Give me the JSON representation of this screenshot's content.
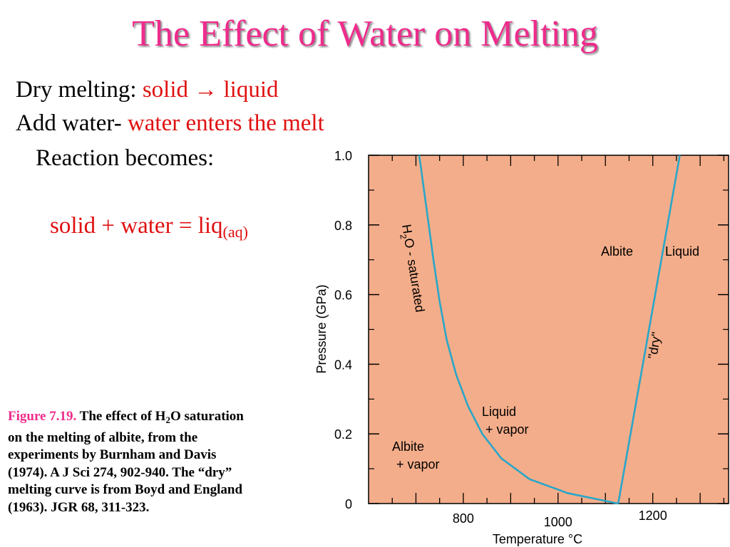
{
  "slide": {
    "title": "The Effect of Water on Melting",
    "line1_prefix": "Dry melting: ",
    "line1_red": "solid → liquid",
    "line2_prefix": "Add water- ",
    "line2_red": "water enters the melt",
    "line3": "Reaction becomes:",
    "equation_main": "solid + water = liq",
    "equation_sub": "(aq)"
  },
  "caption": {
    "fig_label": "Figure 7.19.",
    "text_a": " The effect of H",
    "text_sub": "2",
    "text_b": "O saturation on the melting of albite, from the experiments by Burnham and Davis (1974). A J Sci 274, 902-940. The “dry” melting curve is from Boyd and England (1963). JGR 68, 311-323."
  },
  "colors": {
    "title": "#ee2c8c",
    "red_text": "#e01010",
    "plot_bg": "#f4ad8a",
    "curve": "#2aa6c8"
  },
  "chart_data": {
    "type": "line",
    "xlabel": "Temperature °C",
    "ylabel": "Pressure (GPa)",
    "xlim": [
      600,
      1360
    ],
    "ylim": [
      0,
      1.0
    ],
    "x_ticks": [
      800,
      1000,
      1200
    ],
    "y_ticks": [
      0,
      0.2,
      0.4,
      0.6,
      0.8,
      1.0
    ],
    "y_tick_labels": [
      "0",
      "0.2",
      "0.4",
      "0.6",
      "0.8",
      "1.0"
    ],
    "grid": false,
    "series": [
      {
        "name": "H2O - saturated",
        "x": [
          707,
          722,
          737,
          750,
          765,
          785,
          810,
          840,
          880,
          940,
          1020,
          1127
        ],
        "y": [
          1.0,
          0.85,
          0.7,
          0.58,
          0.47,
          0.37,
          0.28,
          0.2,
          0.13,
          0.07,
          0.03,
          0.0
        ]
      },
      {
        "name": "\"dry\"",
        "x": [
          1127,
          1257
        ],
        "y": [
          0.0,
          1.0
        ]
      }
    ],
    "annotations": {
      "h2o_prefix": "H",
      "h2o_sub": "2",
      "h2o_suffix": "O - saturated",
      "dry": "\"dry\"",
      "albite": "Albite",
      "liquid": "Liquid",
      "liquid_vapor_1": "Liquid",
      "liquid_vapor_2": "+ vapor",
      "albite_vapor_1": "Albite",
      "albite_vapor_2": "+ vapor"
    }
  }
}
